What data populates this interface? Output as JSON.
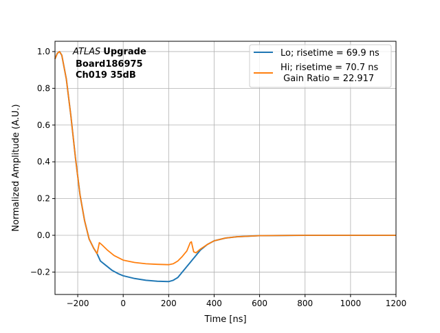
{
  "chart_data": {
    "type": "line",
    "title": "",
    "xlabel": "Time [ns]",
    "ylabel": "Normalized Amplitude (A.U.)",
    "xlim": [
      -300,
      1200
    ],
    "ylim": [
      -0.322,
      1.056
    ],
    "xticks": [
      -200,
      0,
      200,
      400,
      600,
      800,
      1000,
      1200
    ],
    "xtick_labels": [
      "−200",
      "0",
      "200",
      "400",
      "600",
      "800",
      "1000",
      "1200"
    ],
    "yticks": [
      -0.2,
      0.0,
      0.2,
      0.4,
      0.6,
      0.8,
      1.0
    ],
    "ytick_labels": [
      "−0.2",
      "0.0",
      "0.2",
      "0.4",
      "0.6",
      "0.8",
      "1.0"
    ],
    "grid": true,
    "legend_position": "top-right",
    "annotation": {
      "italic": "ATLAS",
      "bold": "Upgrade",
      "line2": "Board186975",
      "line3": "Ch019 35dB"
    },
    "series": [
      {
        "name": "Lo; risetime = 69.9 ns",
        "color": "#1f77b4",
        "x": [
          -300,
          -290,
          -280,
          -270,
          -250,
          -230,
          -210,
          -190,
          -170,
          -150,
          -130,
          -115,
          -100,
          -80,
          -50,
          -20,
          0,
          50,
          100,
          150,
          200,
          220,
          240,
          260,
          280,
          300,
          320,
          340,
          370,
          400,
          450,
          500,
          600,
          800,
          1200
        ],
        "y": [
          0.96,
          0.99,
          1.0,
          0.98,
          0.85,
          0.65,
          0.42,
          0.22,
          0.08,
          -0.02,
          -0.07,
          -0.1,
          -0.14,
          -0.16,
          -0.19,
          -0.21,
          -0.22,
          -0.235,
          -0.245,
          -0.25,
          -0.252,
          -0.245,
          -0.23,
          -0.2,
          -0.17,
          -0.14,
          -0.11,
          -0.08,
          -0.05,
          -0.03,
          -0.015,
          -0.008,
          -0.002,
          0,
          0
        ]
      },
      {
        "name": "Hi; risetime = 70.7 ns",
        "name_line2": " Gain Ratio = 22.917",
        "color": "#ff7f0e",
        "x": [
          -300,
          -290,
          -280,
          -270,
          -250,
          -230,
          -210,
          -190,
          -170,
          -150,
          -130,
          -115,
          -105,
          -95,
          -70,
          -40,
          0,
          50,
          100,
          150,
          200,
          220,
          240,
          260,
          280,
          295,
          300,
          310,
          320,
          340,
          370,
          400,
          450,
          500,
          600,
          800,
          1200
        ],
        "y": [
          0.96,
          0.99,
          1.0,
          0.98,
          0.85,
          0.65,
          0.42,
          0.22,
          0.08,
          -0.02,
          -0.07,
          -0.1,
          -0.04,
          -0.05,
          -0.08,
          -0.11,
          -0.135,
          -0.148,
          -0.155,
          -0.158,
          -0.16,
          -0.155,
          -0.14,
          -0.115,
          -0.085,
          -0.04,
          -0.035,
          -0.09,
          -0.095,
          -0.075,
          -0.05,
          -0.03,
          -0.015,
          -0.008,
          -0.002,
          0,
          0
        ]
      }
    ]
  }
}
